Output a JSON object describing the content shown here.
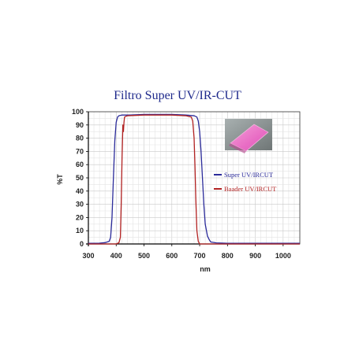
{
  "chart_data": {
    "type": "line",
    "title": "Filtro Super UV/IR-CUT",
    "xlabel": "nm",
    "ylabel": "%T",
    "xlim": [
      300,
      1060
    ],
    "ylim": [
      0,
      100
    ],
    "x_ticks": [
      300,
      400,
      500,
      600,
      700,
      800,
      900,
      1000
    ],
    "y_ticks": [
      0,
      10,
      20,
      30,
      40,
      50,
      60,
      70,
      80,
      90,
      100
    ],
    "grid": true,
    "legend_position": "right",
    "series": [
      {
        "name": "Super UV/IRCUT",
        "color": "#2b2b9a",
        "points": [
          [
            300,
            0.5
          ],
          [
            340,
            0.6
          ],
          [
            360,
            1.0
          ],
          [
            375,
            2.0
          ],
          [
            380,
            5
          ],
          [
            385,
            20
          ],
          [
            390,
            50
          ],
          [
            395,
            78
          ],
          [
            400,
            92
          ],
          [
            405,
            96
          ],
          [
            410,
            97
          ],
          [
            420,
            97.5
          ],
          [
            450,
            97.5
          ],
          [
            500,
            98
          ],
          [
            550,
            98
          ],
          [
            600,
            98
          ],
          [
            650,
            97.5
          ],
          [
            680,
            97
          ],
          [
            690,
            96
          ],
          [
            695,
            93
          ],
          [
            700,
            85
          ],
          [
            705,
            70
          ],
          [
            710,
            50
          ],
          [
            715,
            30
          ],
          [
            720,
            15
          ],
          [
            728,
            6
          ],
          [
            735,
            3
          ],
          [
            740,
            1.5
          ],
          [
            760,
            0.8
          ],
          [
            800,
            0.5
          ],
          [
            900,
            0.5
          ],
          [
            1060,
            0.5
          ]
        ]
      },
      {
        "name": "Baader UV/IRCUT",
        "color": "#b22222",
        "points": [
          [
            300,
            0
          ],
          [
            380,
            0
          ],
          [
            400,
            0
          ],
          [
            410,
            1
          ],
          [
            415,
            5
          ],
          [
            418,
            30
          ],
          [
            421,
            65
          ],
          [
            424,
            90
          ],
          [
            426,
            85
          ],
          [
            428,
            92
          ],
          [
            430,
            96
          ],
          [
            440,
            97
          ],
          [
            500,
            97.5
          ],
          [
            600,
            97.5
          ],
          [
            650,
            97
          ],
          [
            670,
            96
          ],
          [
            675,
            93
          ],
          [
            680,
            80
          ],
          [
            683,
            60
          ],
          [
            686,
            35
          ],
          [
            690,
            10
          ],
          [
            695,
            2
          ],
          [
            700,
            0
          ],
          [
            800,
            0
          ],
          [
            1060,
            0
          ]
        ]
      }
    ]
  },
  "inset": {
    "icon": "filter-glass-photo-icon"
  }
}
